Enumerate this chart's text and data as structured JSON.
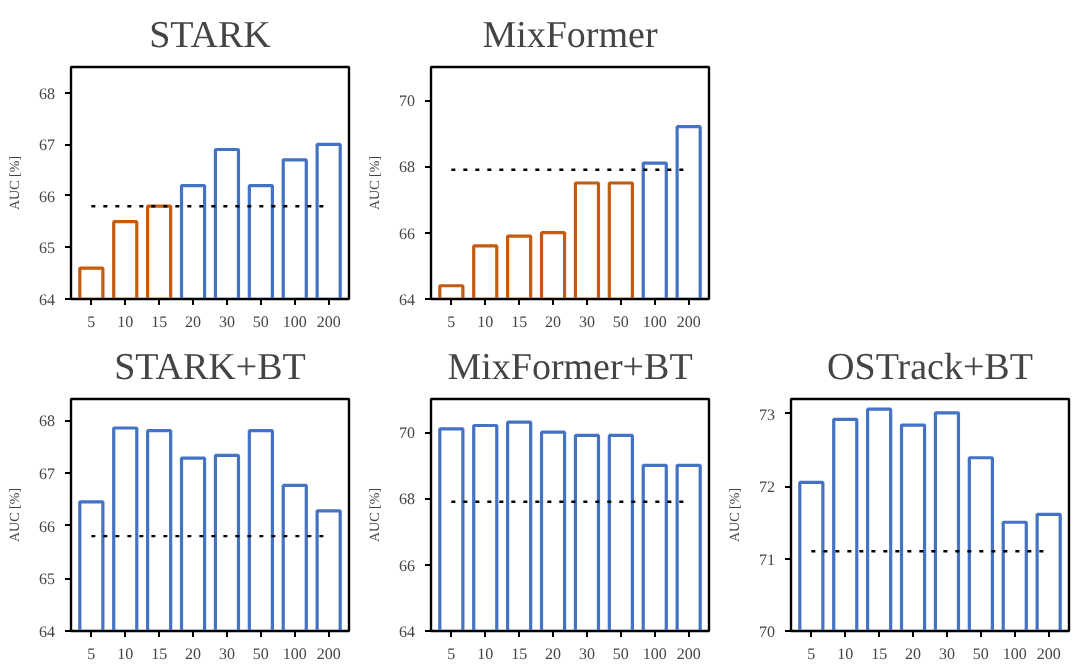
{
  "chart_data": [
    {
      "type": "bar",
      "title": "STARK",
      "ylabel": "AUC [%]",
      "categories": [
        "5",
        "10",
        "15",
        "20",
        "30",
        "50",
        "100",
        "200"
      ],
      "values": [
        64.6,
        65.5,
        65.8,
        66.2,
        66.9,
        66.2,
        66.7,
        67.0
      ],
      "colors": [
        "#c55a11",
        "#c55a11",
        "#c55a11",
        "#4472c4",
        "#4472c4",
        "#4472c4",
        "#4472c4",
        "#4472c4"
      ],
      "ylim": [
        64,
        68.5
      ],
      "yticks": [
        64,
        65,
        66,
        67,
        68
      ],
      "ref_lines": [
        {
          "axis": "y",
          "value": 65.8,
          "color": "#000000",
          "line_style": "dotted"
        }
      ]
    },
    {
      "type": "bar",
      "title": "MixFormer",
      "ylabel": "AUC [%]",
      "categories": [
        "5",
        "10",
        "15",
        "20",
        "30",
        "50",
        "100",
        "200"
      ],
      "values": [
        64.4,
        65.6,
        65.9,
        66.0,
        67.5,
        67.5,
        68.1,
        69.2
      ],
      "colors": [
        "#c55a11",
        "#c55a11",
        "#c55a11",
        "#c55a11",
        "#c55a11",
        "#c55a11",
        "#4472c4",
        "#4472c4"
      ],
      "ylim": [
        64,
        71
      ],
      "yticks": [
        64,
        66,
        68,
        70
      ],
      "ref_lines": [
        {
          "axis": "y",
          "value": 67.9,
          "color": "#000000",
          "line_style": "dotted"
        }
      ]
    },
    {
      "type": "bar",
      "title": "STARK+BT",
      "ylabel": "AUC [%]",
      "categories": [
        "5",
        "10",
        "15",
        "20",
        "30",
        "50",
        "100",
        "200"
      ],
      "values": [
        66.45,
        67.85,
        67.8,
        67.28,
        67.33,
        67.8,
        66.76,
        66.28
      ],
      "colors": [
        "#4472c4",
        "#4472c4",
        "#4472c4",
        "#4472c4",
        "#4472c4",
        "#4472c4",
        "#4472c4",
        "#4472c4"
      ],
      "ylim": [
        64,
        68.4
      ],
      "yticks": [
        64,
        65,
        66,
        67,
        68
      ],
      "ref_lines": [
        {
          "axis": "y",
          "value": 65.8,
          "color": "#000000",
          "line_style": "dotted"
        }
      ]
    },
    {
      "type": "bar",
      "title": "MixFormer+BT",
      "ylabel": "AUC [%]",
      "categories": [
        "5",
        "10",
        "15",
        "20",
        "30",
        "50",
        "100",
        "200"
      ],
      "values": [
        70.1,
        70.2,
        70.3,
        70.0,
        69.9,
        69.9,
        69.0,
        69.0
      ],
      "colors": [
        "#4472c4",
        "#4472c4",
        "#4472c4",
        "#4472c4",
        "#4472c4",
        "#4472c4",
        "#4472c4",
        "#4472c4"
      ],
      "ylim": [
        64,
        71
      ],
      "yticks": [
        64,
        66,
        68,
        70
      ],
      "ref_lines": [
        {
          "axis": "y",
          "value": 67.9,
          "color": "#000000",
          "line_style": "dotted"
        }
      ]
    },
    {
      "type": "bar",
      "title": "OSTrack+BT",
      "ylabel": "AUC [%]",
      "categories": [
        "5",
        "10",
        "15",
        "20",
        "30",
        "50",
        "100",
        "200"
      ],
      "values": [
        72.05,
        72.92,
        73.06,
        72.84,
        73.01,
        72.39,
        71.5,
        71.61
      ],
      "colors": [
        "#4472c4",
        "#4472c4",
        "#4472c4",
        "#4472c4",
        "#4472c4",
        "#4472c4",
        "#4472c4",
        "#4472c4"
      ],
      "ylim": [
        70,
        73.2
      ],
      "yticks": [
        70,
        71,
        72,
        73
      ],
      "ref_lines": [
        {
          "axis": "y",
          "value": 71.1,
          "color": "#000000",
          "line_style": "dotted"
        }
      ]
    }
  ]
}
